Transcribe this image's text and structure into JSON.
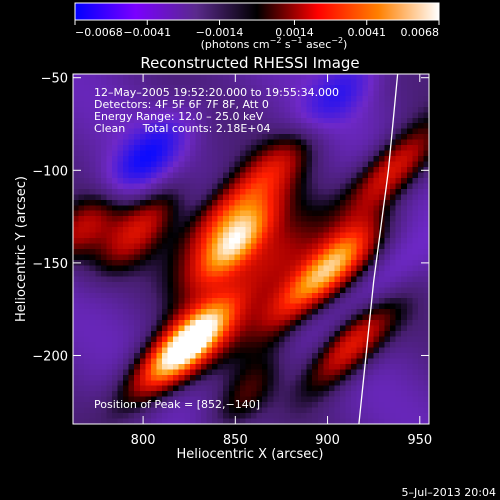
{
  "chart_data": {
    "type": "heatmap",
    "title": "Reconstructed RHESSI Image",
    "xlabel": "Heliocentric X (arcsec)",
    "ylabel": "Heliocentric Y (arcsec)",
    "xlim": [
      762,
      955
    ],
    "ylim": [
      -237,
      -48
    ],
    "x_ticks": [
      800,
      850,
      900,
      950
    ],
    "y_ticks": [
      -50,
      -100,
      -150,
      -200
    ],
    "colorbar": {
      "range": [
        -0.0068,
        0.0068
      ],
      "tick_values": [
        -0.0068,
        -0.0041,
        -0.0014,
        0.0014,
        0.0041,
        0.0068
      ],
      "tick_labels": [
        "−0.0068",
        "−0.0041",
        "−0.0014",
        "0.0014",
        "0.0041",
        "0.0068"
      ],
      "colors": [
        "#0000ff",
        "#7a00ff",
        "#5a2a8c",
        "#000000",
        "#ff0000",
        "#ff8000",
        "#ffffff"
      ]
    },
    "unit_label": {
      "prefix": "(photons cm",
      "exp1": "−2",
      "mid": " s",
      "exp2": "−1",
      "mid2": " asec",
      "exp3": "−2",
      "suffix": ")"
    },
    "annotations": {
      "time": "12–May–2005 19:52:20.000 to 19:55:34.000",
      "detectors": "Detectors: 4F 5F 6F 7F 8F, Att 0",
      "energy": "Energy Range: 12.0 – 25.0 keV",
      "clean": "Clean     Total counts: 2.18E+04",
      "peak": "Position of Peak = [852,−140]"
    },
    "peak": [
      852,
      -140
    ],
    "sources": [
      {
        "x": 850,
        "y": -140,
        "amp": 1.0
      },
      {
        "x": 842,
        "y": -125,
        "amp": 0.55
      },
      {
        "x": 830,
        "y": -190,
        "amp": 0.85
      },
      {
        "x": 810,
        "y": -205,
        "amp": 0.6
      },
      {
        "x": 880,
        "y": -170,
        "amp": 0.55
      },
      {
        "x": 870,
        "y": -150,
        "amp": 0.45
      },
      {
        "x": 905,
        "y": -150,
        "amp": 0.7
      },
      {
        "x": 912,
        "y": -195,
        "amp": 0.7
      },
      {
        "x": 935,
        "y": -100,
        "amp": 0.65
      },
      {
        "x": 800,
        "y": -130,
        "amp": 0.5
      },
      {
        "x": 875,
        "y": -95,
        "amp": 0.4
      },
      {
        "x": 860,
        "y": -220,
        "amp": 0.45
      },
      {
        "x": 768,
        "y": -130,
        "amp": 0.45
      }
    ],
    "negatives": [
      {
        "x": 800,
        "y": -95,
        "amp": 0.8
      },
      {
        "x": 905,
        "y": -60,
        "amp": 0.6
      },
      {
        "x": 870,
        "y": -215,
        "amp": 0.45
      },
      {
        "x": 930,
        "y": -160,
        "amp": 0.4
      }
    ],
    "limb": [
      [
        938,
        -48
      ],
      [
        933,
        -100
      ],
      [
        925,
        -160
      ],
      [
        917,
        -237
      ]
    ],
    "timestamp": "5–Jul–2013 20:04"
  }
}
